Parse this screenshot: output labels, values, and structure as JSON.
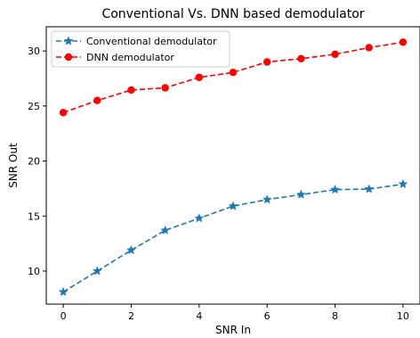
{
  "chart_data": {
    "type": "line",
    "title": "Conventional Vs. DNN based demodulator",
    "xlabel": "SNR In",
    "ylabel": "SNR Out",
    "x": [
      0,
      1,
      2,
      3,
      4,
      5,
      6,
      7,
      8,
      9,
      10
    ],
    "xlim": [
      -0.5,
      10.5
    ],
    "ylim": [
      7,
      32.2
    ],
    "xticks": [
      0,
      2,
      4,
      6,
      8,
      10
    ],
    "yticks": [
      10,
      15,
      20,
      25,
      30
    ],
    "grid": false,
    "legend_position": "top-left",
    "series": [
      {
        "name": "Conventional demodulator",
        "color": "#1f77b4",
        "marker": "star",
        "linestyle": "dashed",
        "values": [
          8.1,
          10.0,
          11.9,
          13.7,
          14.8,
          15.9,
          16.5,
          16.95,
          17.4,
          17.45,
          17.9
        ]
      },
      {
        "name": "DNN demodulator",
        "color": "#ff0000",
        "marker": "circle",
        "linestyle": "dashed",
        "values": [
          24.4,
          25.5,
          26.45,
          26.65,
          27.6,
          28.05,
          29.0,
          29.3,
          29.7,
          30.3,
          30.8
        ]
      }
    ]
  }
}
